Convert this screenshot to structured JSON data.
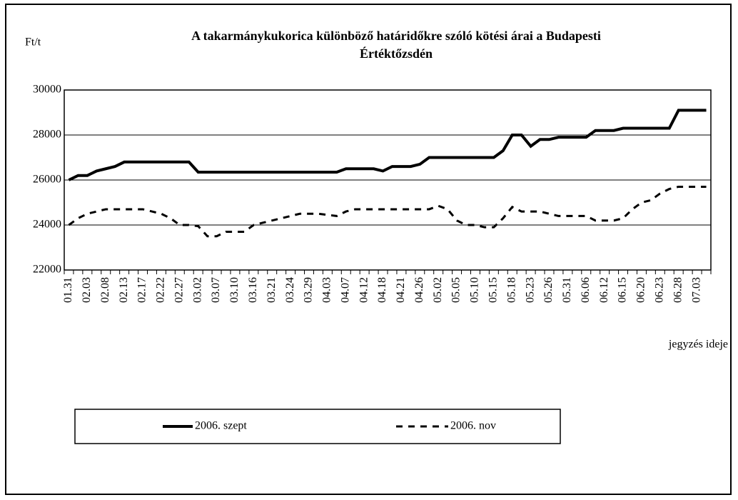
{
  "chart_data": {
    "type": "line",
    "title": "A takarmánykukorica különböző határidőkre szóló kötési árai a Budapesti Értéktőzsdén",
    "y_label": "Ft/t",
    "x_label": "jegyzés ideje",
    "categories": [
      "01.31",
      null,
      "02.03",
      null,
      "02.08",
      null,
      "02.13",
      null,
      "02.17",
      null,
      "02.22",
      null,
      "02.27",
      null,
      "03.02",
      null,
      "03.07",
      null,
      "03.10",
      null,
      "03.16",
      null,
      "03.21",
      null,
      "03.24",
      null,
      "03.29",
      null,
      "04.03",
      null,
      "04.07",
      null,
      "04.12",
      null,
      "04.18",
      null,
      "04.21",
      null,
      "04.26",
      null,
      "05.02",
      null,
      "05.05",
      null,
      "05.10",
      null,
      "05.15",
      null,
      "05.18",
      null,
      "05.23",
      null,
      "05.26",
      null,
      "05.31",
      null,
      "06.06",
      null,
      "06.12",
      null,
      "06.15",
      null,
      "06.20",
      null,
      "06.23",
      null,
      "06.28",
      null,
      "07.03",
      null
    ],
    "series": [
      {
        "name": "2006. szept",
        "color": "#000000",
        "dash": false,
        "values": [
          26000,
          26200,
          26200,
          26400,
          26500,
          26600,
          26800,
          26800,
          26800,
          26800,
          26800,
          26800,
          26800,
          26800,
          26350,
          26350,
          26350,
          26350,
          26350,
          26350,
          26350,
          26350,
          26350,
          26350,
          26350,
          26350,
          26350,
          26350,
          26350,
          26350,
          26500,
          26500,
          26500,
          26500,
          26400,
          26600,
          26600,
          26600,
          26700,
          27000,
          27000,
          27000,
          27000,
          27000,
          27000,
          27000,
          27000,
          27300,
          28000,
          28000,
          27500,
          27800,
          27800,
          27900,
          27900,
          27900,
          27900,
          28200,
          28200,
          28200,
          28300,
          28300,
          28300,
          28300,
          28300,
          28300,
          29100,
          29100,
          29100,
          29100
        ]
      },
      {
        "name": "2006. nov",
        "color": "#000000",
        "dash": true,
        "values": [
          24000,
          24300,
          24500,
          24600,
          24700,
          24700,
          24700,
          24700,
          24700,
          24600,
          24500,
          24300,
          24000,
          24000,
          23950,
          23500,
          23500,
          23700,
          23700,
          23700,
          24000,
          24100,
          24200,
          24300,
          24400,
          24500,
          24500,
          24500,
          24450,
          24400,
          24600,
          24700,
          24700,
          24700,
          24700,
          24700,
          24700,
          24700,
          24700,
          24700,
          24850,
          24700,
          24200,
          24000,
          24000,
          23900,
          23900,
          24300,
          24800,
          24600,
          24600,
          24600,
          24500,
          24400,
          24400,
          24400,
          24400,
          24200,
          24200,
          24200,
          24300,
          24700,
          25000,
          25100,
          25400,
          25600,
          25700,
          25700,
          25700,
          25700
        ]
      }
    ],
    "ylim": [
      22000,
      30000
    ],
    "yticks": [
      22000,
      24000,
      26000,
      28000,
      30000
    ],
    "grid": true
  }
}
